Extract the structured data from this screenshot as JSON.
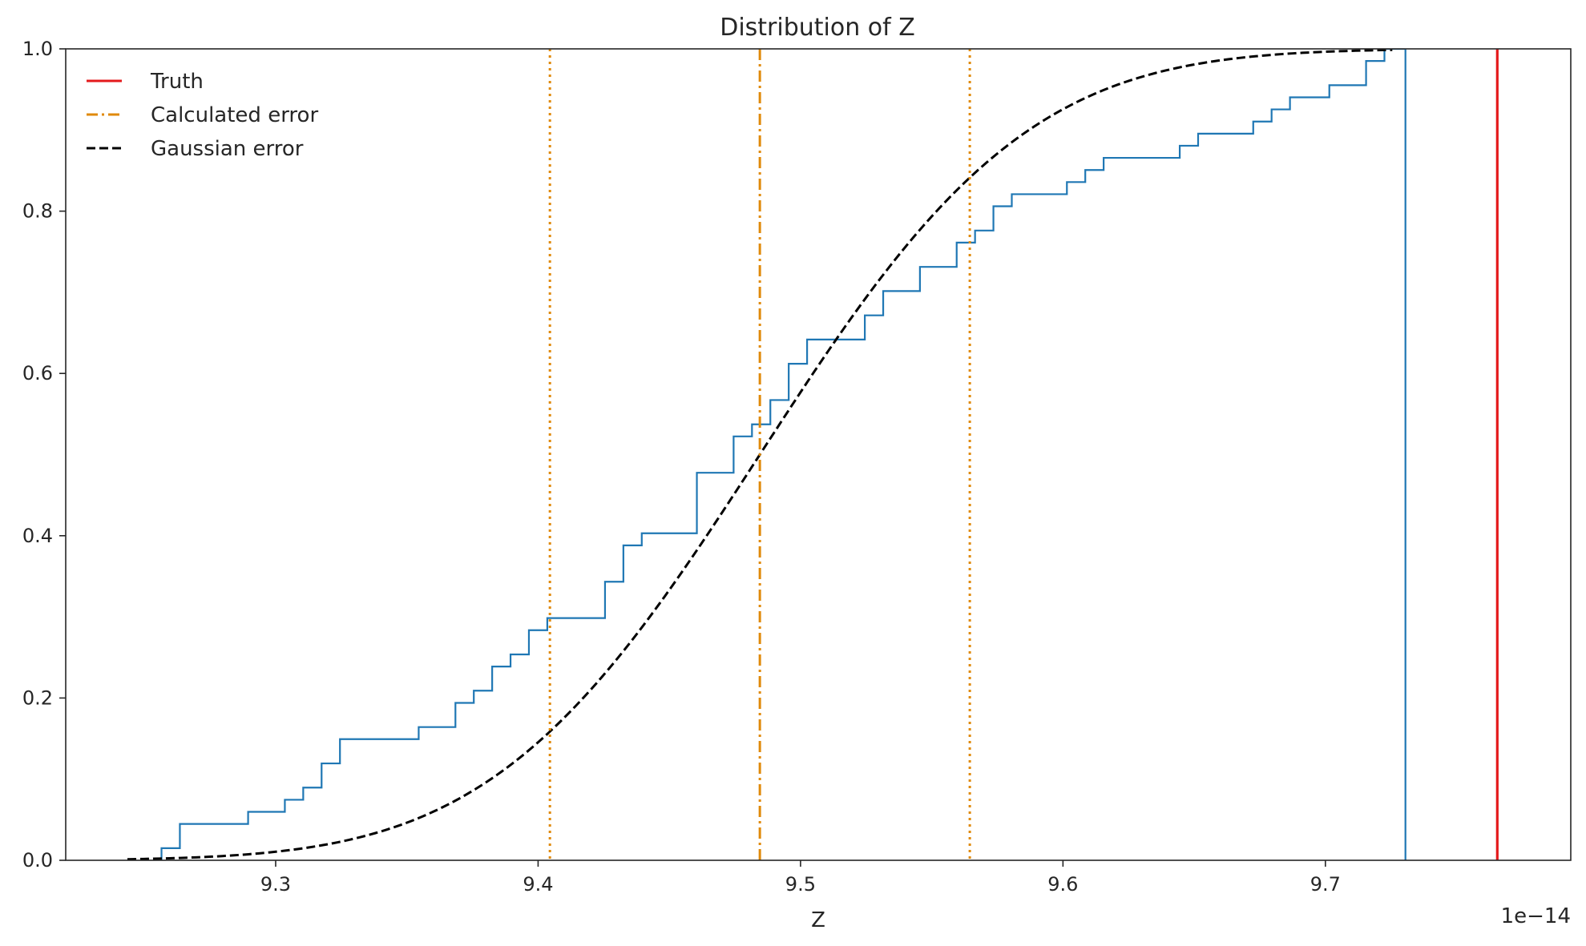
{
  "chart_data": {
    "type": "line",
    "title": "Distribution of Z",
    "xlabel": "Z",
    "ylabel": "",
    "x_offset_label": "1e−14",
    "xlim": [
      9.22,
      9.7935
    ],
    "ylim": [
      0.0,
      1.0
    ],
    "x_ticks": [
      9.3,
      9.4,
      9.5,
      9.6,
      9.7
    ],
    "x_tick_labels": [
      "9.3",
      "9.4",
      "9.5",
      "9.6",
      "9.7"
    ],
    "y_ticks": [
      0.0,
      0.2,
      0.4,
      0.6,
      0.8,
      1.0
    ],
    "y_tick_labels": [
      "0.0",
      "0.2",
      "0.4",
      "0.6",
      "0.8",
      "1.0"
    ],
    "grid": false,
    "legend_position": "top-left",
    "legend": [
      {
        "label": "Truth",
        "color": "#e41a1c",
        "style": "solid"
      },
      {
        "label": "Calculated error",
        "color": "#e08a0b",
        "style": "dashdot"
      },
      {
        "label": "Gaussian error",
        "color": "#000000",
        "style": "dashed"
      }
    ],
    "truth_x": 9.7655,
    "calculated_mean_x": 9.4845,
    "calculated_bounds_x": [
      9.4045,
      9.5645
    ],
    "gaussian": {
      "mean": 9.4845,
      "sd": 0.08,
      "x_start": 9.2435,
      "x_end": 9.7255
    },
    "ecdf": {
      "color": "#1f77b4",
      "final_x": 9.7305,
      "steps": [
        [
          9.2565,
          0.0149
        ],
        [
          9.2635,
          0.0448
        ],
        [
          9.2895,
          0.0597
        ],
        [
          9.3035,
          0.0746
        ],
        [
          9.3105,
          0.0896
        ],
        [
          9.3175,
          0.1194
        ],
        [
          9.3245,
          0.1493
        ],
        [
          9.3545,
          0.1642
        ],
        [
          9.3685,
          0.194
        ],
        [
          9.3755,
          0.209
        ],
        [
          9.3825,
          0.2388
        ],
        [
          9.3895,
          0.2537
        ],
        [
          9.3965,
          0.2836
        ],
        [
          9.4035,
          0.2985
        ],
        [
          9.4255,
          0.3433
        ],
        [
          9.4325,
          0.3881
        ],
        [
          9.4395,
          0.403
        ],
        [
          9.4605,
          0.4776
        ],
        [
          9.4745,
          0.5224
        ],
        [
          9.4815,
          0.5373
        ],
        [
          9.4885,
          0.5672
        ],
        [
          9.4955,
          0.6119
        ],
        [
          9.5025,
          0.6418
        ],
        [
          9.5245,
          0.6716
        ],
        [
          9.5315,
          0.7015
        ],
        [
          9.5455,
          0.7313
        ],
        [
          9.5595,
          0.7612
        ],
        [
          9.5665,
          0.7761
        ],
        [
          9.5735,
          0.806
        ],
        [
          9.5805,
          0.8209
        ],
        [
          9.6015,
          0.8358
        ],
        [
          9.6085,
          0.8507
        ],
        [
          9.6155,
          0.8657
        ],
        [
          9.6445,
          0.8806
        ],
        [
          9.6515,
          0.8955
        ],
        [
          9.6725,
          0.9104
        ],
        [
          9.6795,
          0.9254
        ],
        [
          9.6865,
          0.9403
        ],
        [
          9.7015,
          0.9552
        ],
        [
          9.7155,
          0.9851
        ],
        [
          9.7225,
          1.0
        ]
      ]
    }
  }
}
